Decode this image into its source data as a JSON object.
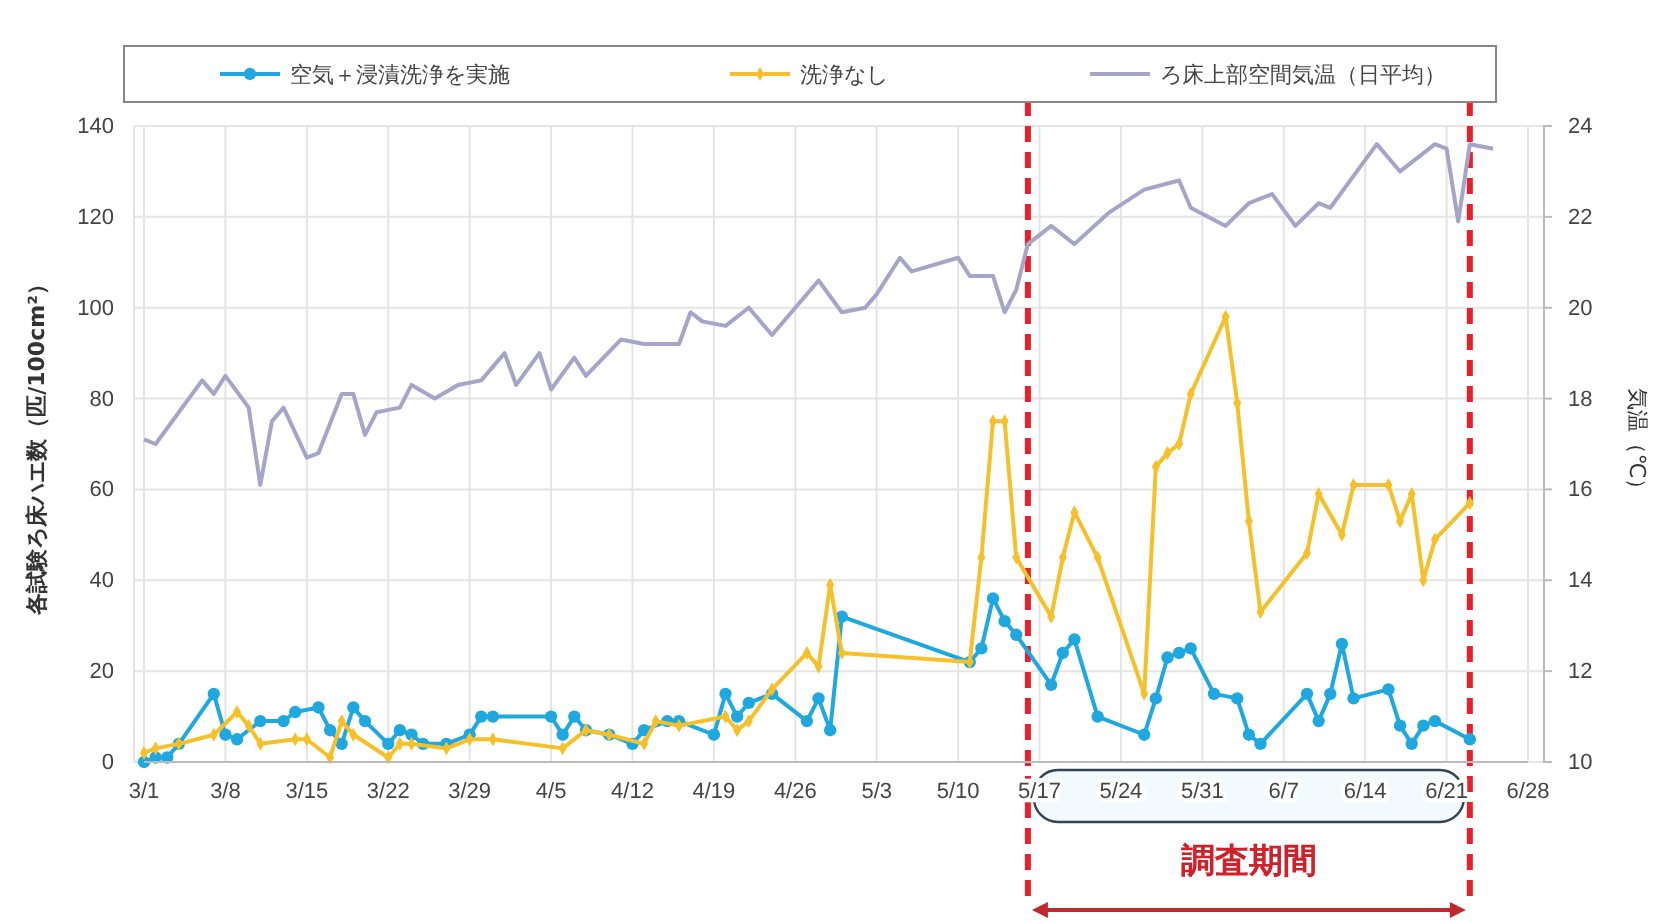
{
  "chart_data": {
    "type": "line",
    "ylabel": "各試験ろ床ハエ数（匹/100cm²）",
    "y2label": "気温（℃）",
    "xlim": [
      "--03-01",
      "--06-28"
    ],
    "xticks": [
      {
        "value": "--03-01",
        "label": "3/1"
      },
      {
        "value": "--03-08",
        "label": "3/8"
      },
      {
        "value": "--03-15",
        "label": "3/15"
      },
      {
        "value": "--03-22",
        "label": "3/22"
      },
      {
        "value": "--03-29",
        "label": "3/29"
      },
      {
        "value": "--04-05",
        "label": "4/5"
      },
      {
        "value": "--04-12",
        "label": "4/12"
      },
      {
        "value": "--04-19",
        "label": "4/19"
      },
      {
        "value": "--04-26",
        "label": "4/26"
      },
      {
        "value": "--05-03",
        "label": "5/3"
      },
      {
        "value": "--05-10",
        "label": "5/10"
      },
      {
        "value": "--05-17",
        "label": "5/17"
      },
      {
        "value": "--05-24",
        "label": "5/24"
      },
      {
        "value": "--05-31",
        "label": "5/31"
      },
      {
        "value": "--06-07",
        "label": "6/7"
      },
      {
        "value": "--06-14",
        "label": "6/14"
      },
      {
        "value": "--06-21",
        "label": "6/21"
      },
      {
        "value": "--06-28",
        "label": "6/28"
      }
    ],
    "ylim": [
      0,
      140
    ],
    "yticks": [
      0,
      20,
      40,
      60,
      80,
      100,
      120,
      140
    ],
    "y2lim": [
      10,
      24
    ],
    "y2ticks": [
      10,
      12,
      14,
      16,
      18,
      20,
      22,
      24
    ],
    "grid": true,
    "legend": "top",
    "series": [
      {
        "name": "空気＋浸漬洗浄を実施",
        "color": "#1fa8e0",
        "marker": "circle",
        "x": [
          "--03-01",
          "--03-02",
          "--03-03",
          "--03-04",
          "--03-07",
          "--03-08",
          "--03-09",
          "--03-11",
          "--03-13",
          "--03-14",
          "--03-16",
          "--03-17",
          "--03-18",
          "--03-19",
          "--03-20",
          "--03-22",
          "--03-23",
          "--03-24",
          "--03-25",
          "--03-27",
          "--03-29",
          "--03-30",
          "--03-31",
          "--04-05",
          "--04-06",
          "--04-07",
          "--04-08",
          "--04-10",
          "--04-12",
          "--04-13",
          "--04-15",
          "--04-16",
          "--04-19",
          "--04-20",
          "--04-21",
          "--04-22",
          "--04-24",
          "--04-27",
          "--04-28",
          "--04-29",
          "--04-30",
          "--05-11",
          "--05-12",
          "--05-13",
          "--05-14",
          "--05-15",
          "--05-18",
          "--05-19",
          "--05-20",
          "--05-22",
          "--05-26",
          "--05-27",
          "--05-28",
          "--05-29",
          "--05-30",
          "--06-01",
          "--06-03",
          "--06-04",
          "--06-05",
          "--06-09",
          "--06-10",
          "--06-11",
          "--06-12",
          "--06-13",
          "--06-16",
          "--06-17",
          "--06-18",
          "--06-19",
          "--06-20",
          "--06-23"
        ],
        "values": [
          0,
          1,
          1,
          4,
          15,
          6,
          5,
          9,
          9,
          11,
          12,
          7,
          4,
          12,
          9,
          4,
          7,
          6,
          4,
          4,
          6,
          10,
          10,
          10,
          6,
          10,
          7,
          6,
          4,
          7,
          9,
          9,
          6,
          15,
          10,
          13,
          15,
          9,
          14,
          7,
          32,
          22,
          25,
          36,
          31,
          28,
          17,
          24,
          27,
          10,
          6,
          14,
          23,
          24,
          25,
          15,
          14,
          6,
          4,
          15,
          9,
          15,
          26,
          14,
          16,
          8,
          4,
          8,
          9,
          5
        ]
      },
      {
        "name": "洗浄なし",
        "color": "#f5c02a",
        "marker": "diamond",
        "x": [
          "--03-01",
          "--03-02",
          "--03-04",
          "--03-07",
          "--03-09",
          "--03-10",
          "--03-11",
          "--03-14",
          "--03-15",
          "--03-17",
          "--03-18",
          "--03-19",
          "--03-22",
          "--03-23",
          "--03-24",
          "--03-27",
          "--03-29",
          "--03-31",
          "--04-06",
          "--04-08",
          "--04-10",
          "--04-13",
          "--04-14",
          "--04-16",
          "--04-20",
          "--04-21",
          "--04-22",
          "--04-24",
          "--04-27",
          "--04-28",
          "--04-29",
          "--04-30",
          "--05-11",
          "--05-12",
          "--05-13",
          "--05-14",
          "--05-15",
          "--05-18",
          "--05-19",
          "--05-20",
          "--05-22",
          "--05-26",
          "--05-27",
          "--05-28",
          "--05-29",
          "--05-30",
          "--06-02",
          "--06-03",
          "--06-04",
          "--06-05",
          "--06-09",
          "--06-10",
          "--06-12",
          "--06-13",
          "--06-16",
          "--06-17",
          "--06-18",
          "--06-19",
          "--06-20",
          "--06-23"
        ],
        "values": [
          2,
          3,
          4,
          6,
          11,
          8,
          4,
          5,
          5,
          1,
          9,
          6,
          1,
          4,
          4,
          3,
          5,
          5,
          3,
          7,
          6,
          4,
          9,
          8,
          10,
          7,
          9,
          16,
          24,
          21,
          39,
          24,
          22,
          45,
          75,
          75,
          45,
          32,
          45,
          55,
          45,
          15,
          65,
          68,
          70,
          81,
          98,
          79,
          53,
          33,
          46,
          59,
          50,
          61,
          61,
          53,
          59,
          40,
          49,
          57
        ]
      },
      {
        "name": "ろ床上部空間気温（日平均）",
        "color": "#a5a5c8",
        "axis": "y2",
        "marker": "none",
        "x": [
          "--03-01",
          "--03-02",
          "--03-06",
          "--03-07",
          "--03-08",
          "--03-10",
          "--03-11",
          "--03-12",
          "--03-13",
          "--03-15",
          "--03-16",
          "--03-18",
          "--03-19",
          "--03-20",
          "--03-21",
          "--03-23",
          "--03-24",
          "--03-26",
          "--03-28",
          "--03-30",
          "--04-01",
          "--04-02",
          "--04-04",
          "--04-05",
          "--04-07",
          "--04-08",
          "--04-11",
          "--04-13",
          "--04-16",
          "--04-17",
          "--04-18",
          "--04-20",
          "--04-22",
          "--04-24",
          "--04-26",
          "--04-28",
          "--04-30",
          "--05-02",
          "--05-03",
          "--05-05",
          "--05-06",
          "--05-10",
          "--05-11",
          "--05-13",
          "--05-14",
          "--05-15",
          "--05-16",
          "--05-18",
          "--05-20",
          "--05-23",
          "--05-26",
          "--05-29",
          "--05-30",
          "--06-02",
          "--06-04",
          "--06-06",
          "--06-08",
          "--06-10",
          "--06-11",
          "--06-15",
          "--06-17",
          "--06-20",
          "--06-21",
          "--06-22",
          "--06-23",
          "--06-25"
        ],
        "values": [
          17.1,
          17.0,
          18.4,
          18.1,
          18.5,
          17.8,
          16.1,
          17.5,
          17.8,
          16.7,
          16.8,
          18.1,
          18.1,
          17.2,
          17.7,
          17.8,
          18.3,
          18.0,
          18.3,
          18.4,
          19.0,
          18.3,
          19.0,
          18.2,
          18.9,
          18.5,
          19.3,
          19.2,
          19.2,
          19.9,
          19.7,
          19.6,
          20.0,
          19.4,
          20.0,
          20.6,
          19.9,
          20.0,
          20.3,
          21.1,
          20.8,
          21.1,
          20.7,
          20.7,
          19.9,
          20.4,
          21.4,
          21.8,
          21.4,
          22.1,
          22.6,
          22.8,
          22.2,
          21.8,
          22.3,
          22.5,
          21.8,
          22.3,
          22.2,
          23.6,
          23.0,
          23.6,
          23.5,
          21.9,
          23.6,
          23.5
        ]
      }
    ],
    "ref_lines": [
      {
        "axis": "x",
        "value": "--05-16",
        "color": "#e8202a",
        "line_style": "dashed"
      },
      {
        "axis": "x",
        "value": "--06-23",
        "color": "#e8202a",
        "line_style": "dashed"
      }
    ],
    "annotations": [
      "調査期間"
    ]
  }
}
